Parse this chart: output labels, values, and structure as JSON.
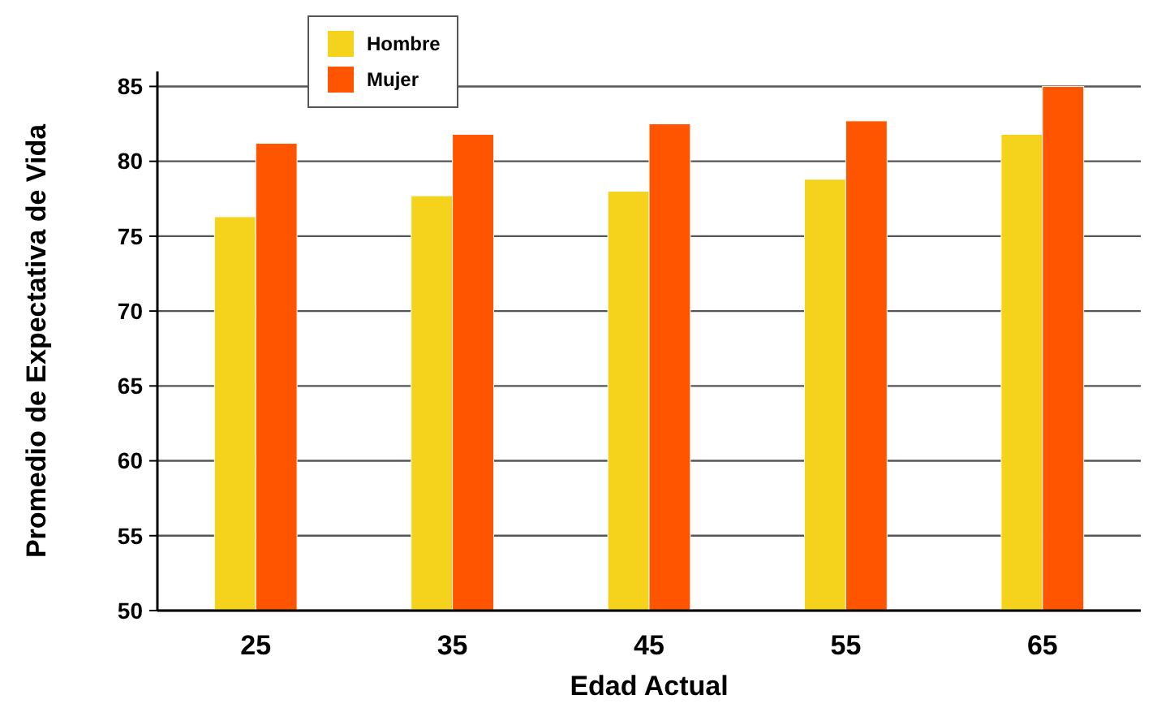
{
  "chart_data": {
    "type": "bar",
    "xlabel": "Edad Actual",
    "ylabel": "Promedio de Expectativa de Vida",
    "categories": [
      "25",
      "35",
      "45",
      "55",
      "65"
    ],
    "series": [
      {
        "name": "Hombre",
        "color": "#f5d21c",
        "values": [
          76.3,
          77.7,
          78.0,
          78.8,
          81.8
        ]
      },
      {
        "name": "Mujer",
        "color": "#ff5500",
        "values": [
          81.2,
          81.8,
          82.5,
          82.7,
          85.0
        ]
      }
    ],
    "ylim": [
      50,
      86
    ],
    "yticks": [
      50,
      55,
      60,
      65,
      70,
      75,
      80,
      85
    ],
    "grid": "y",
    "legend": "top left"
  }
}
